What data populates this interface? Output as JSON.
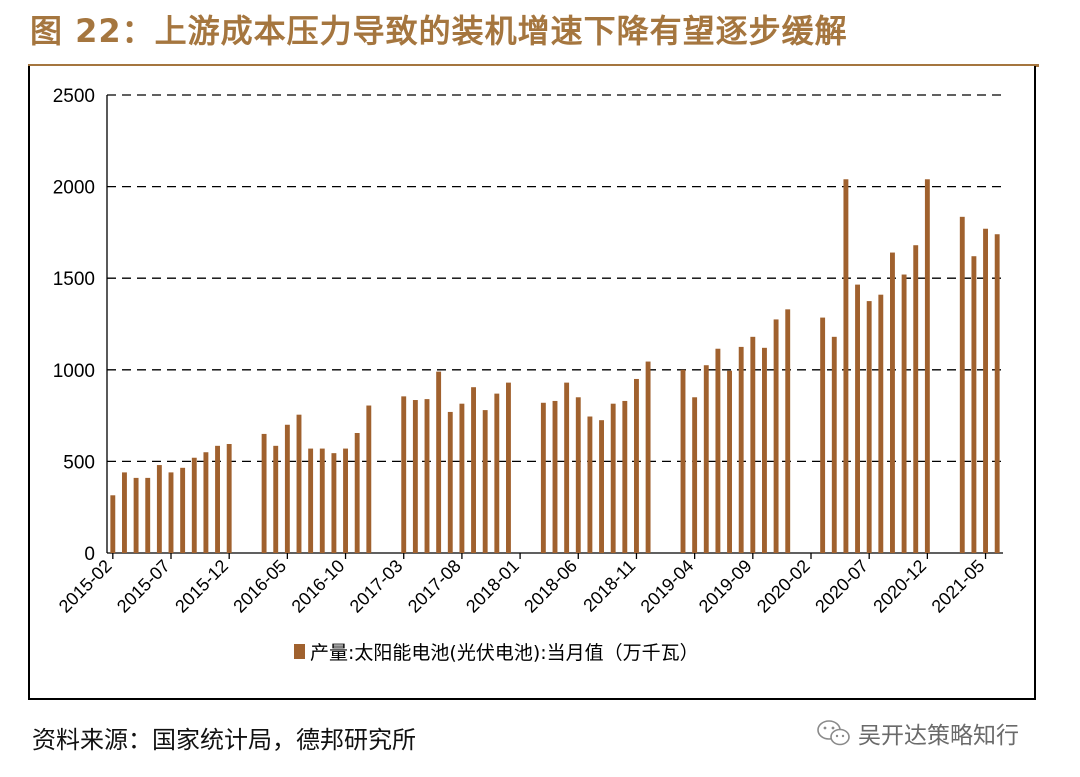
{
  "figure": {
    "title": "图 22：上游成本压力导致的装机增速下降有望逐步缓解",
    "source": "资料来源：国家统计局，德邦研究所",
    "watermark": "吴开达策略知行",
    "watermark_icon": "wechat-icon",
    "accent_color": "#a5763f"
  },
  "chart_data": {
    "type": "bar",
    "title": "",
    "xlabel": "",
    "ylabel": "",
    "ylim": [
      0,
      2500
    ],
    "yticks": [
      0,
      500,
      1000,
      1500,
      2000,
      2500
    ],
    "grid": "horizontal dashed",
    "legend_position": "bottom-center",
    "bar_color": "#a0612e",
    "categories": [
      "2015-02",
      "2015-03",
      "2015-04",
      "2015-05",
      "2015-06",
      "2015-07",
      "2015-08",
      "2015-09",
      "2015-10",
      "2015-11",
      "2015-12",
      "2016-01",
      "2016-02",
      "2016-03",
      "2016-04",
      "2016-05",
      "2016-06",
      "2016-07",
      "2016-08",
      "2016-09",
      "2016-10",
      "2016-11",
      "2016-12",
      "2017-01",
      "2017-02",
      "2017-03",
      "2017-04",
      "2017-05",
      "2017-06",
      "2017-07",
      "2017-08",
      "2017-09",
      "2017-10",
      "2017-11",
      "2017-12",
      "2018-01",
      "2018-02",
      "2018-03",
      "2018-04",
      "2018-05",
      "2018-06",
      "2018-07",
      "2018-08",
      "2018-09",
      "2018-10",
      "2018-11",
      "2018-12",
      "2019-01",
      "2019-02",
      "2019-03",
      "2019-04",
      "2019-05",
      "2019-06",
      "2019-07",
      "2019-08",
      "2019-09",
      "2019-10",
      "2019-11",
      "2019-12",
      "2020-01",
      "2020-02",
      "2020-03",
      "2020-04",
      "2020-05",
      "2020-06",
      "2020-07",
      "2020-08",
      "2020-09",
      "2020-10",
      "2020-11",
      "2020-12",
      "2021-01",
      "2021-02",
      "2021-03",
      "2021-04",
      "2021-05",
      "2021-06"
    ],
    "tick_labels": [
      "2015-02",
      "2015-07",
      "2015-12",
      "2016-05",
      "2016-10",
      "2017-03",
      "2017-08",
      "2018-01",
      "2018-06",
      "2018-11",
      "2019-04",
      "2019-09",
      "2020-02",
      "2020-07",
      "2020-12",
      "2021-05"
    ],
    "series": [
      {
        "name": "产量:太阳能电池(光伏电池):当月值（万千瓦）",
        "values": [
          315,
          440,
          410,
          410,
          480,
          440,
          465,
          520,
          550,
          585,
          595,
          null,
          null,
          650,
          585,
          700,
          755,
          570,
          570,
          545,
          570,
          655,
          805,
          null,
          null,
          855,
          835,
          840,
          990,
          770,
          815,
          905,
          780,
          870,
          930,
          null,
          null,
          820,
          830,
          930,
          850,
          745,
          725,
          815,
          830,
          950,
          1045,
          null,
          null,
          1000,
          850,
          1025,
          1115,
          995,
          1125,
          1180,
          1120,
          1275,
          1330,
          null,
          null,
          1285,
          1180,
          2040,
          1465,
          1375,
          1410,
          1640,
          1520,
          1680,
          2040,
          null,
          null,
          1835,
          1620,
          1770,
          1740
        ]
      }
    ]
  }
}
